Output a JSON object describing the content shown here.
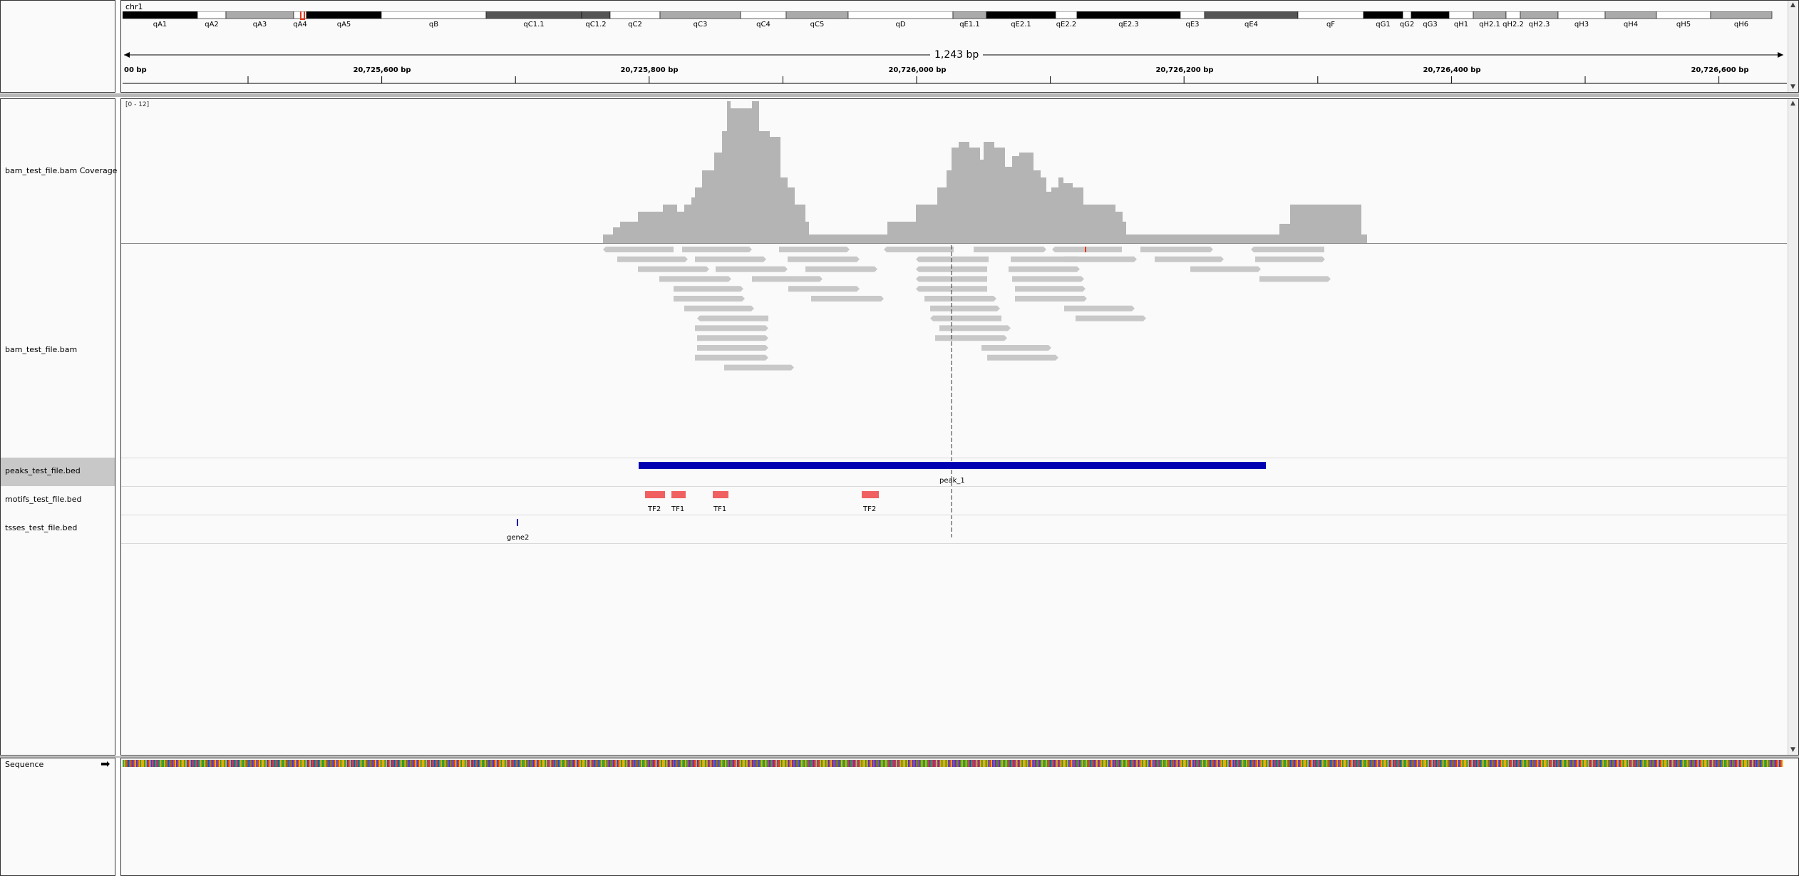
{
  "header": {
    "chromosome": "chr1",
    "span_label": "1,243 bp",
    "cytobands": [
      {
        "name": "qA1",
        "w": 105,
        "stain": "black"
      },
      {
        "name": "qA2",
        "w": 40,
        "stain": "white"
      },
      {
        "name": "qA3",
        "w": 95,
        "stain": "lgray"
      },
      {
        "name": "qA4",
        "w": 18,
        "stain": "white"
      },
      {
        "name": "qA5",
        "w": 105,
        "stain": "black"
      },
      {
        "name": "qB",
        "w": 147,
        "stain": "white"
      },
      {
        "name": "qC1.1",
        "w": 134,
        "stain": "dgray"
      },
      {
        "name": "qC1.2",
        "w": 40,
        "stain": "dgray"
      },
      {
        "name": "qC2",
        "w": 70,
        "stain": "white"
      },
      {
        "name": "qC3",
        "w": 113,
        "stain": "lgray"
      },
      {
        "name": "qC4",
        "w": 64,
        "stain": "white"
      },
      {
        "name": "qC5",
        "w": 87,
        "stain": "lgray"
      },
      {
        "name": "qD",
        "w": 147,
        "stain": "white"
      },
      {
        "name": "qE1.1",
        "w": 47,
        "stain": "lgray"
      },
      {
        "name": "qE2.1",
        "w": 97,
        "stain": "black"
      },
      {
        "name": "qE2.2",
        "w": 30,
        "stain": "white"
      },
      {
        "name": "qE2.3",
        "w": 145,
        "stain": "black"
      },
      {
        "name": "qE3",
        "w": 34,
        "stain": "white"
      },
      {
        "name": "qE4",
        "w": 131,
        "stain": "dgray"
      },
      {
        "name": "qF",
        "w": 92,
        "stain": "white"
      },
      {
        "name": "qG1",
        "w": 55,
        "stain": "black"
      },
      {
        "name": "qG2",
        "w": 12,
        "stain": "white"
      },
      {
        "name": "qG3",
        "w": 53,
        "stain": "black"
      },
      {
        "name": "qH1",
        "w": 34,
        "stain": "white"
      },
      {
        "name": "qH2.1",
        "w": 46,
        "stain": "lgray"
      },
      {
        "name": "qH2.2",
        "w": 20,
        "stain": "white"
      },
      {
        "name": "qH2.3",
        "w": 53,
        "stain": "lgray"
      },
      {
        "name": "qH3",
        "w": 66,
        "stain": "white"
      },
      {
        "name": "qH4",
        "w": 72,
        "stain": "lgray"
      },
      {
        "name": "qH5",
        "w": 76,
        "stain": "white"
      },
      {
        "name": "qH6",
        "w": 86,
        "stain": "lgray"
      }
    ],
    "ruler_labels": [
      "00 bp",
      "20,725,600 bp",
      "20,725,800 bp",
      "20,726,000 bp",
      "20,726,200 bp",
      "20,726,400 bp",
      "20,726,600 bp"
    ]
  },
  "tracks": {
    "coverage": {
      "name": "bam_test_file.bam Coverage",
      "range": "[0 - 12]"
    },
    "alignments": {
      "name": "bam_test_file.bam"
    },
    "peaks": {
      "name": "peaks_test_file.bed",
      "feature": "peak_1"
    },
    "motifs": {
      "name": "motifs_test_file.bed",
      "features": [
        "TF2",
        "TF1",
        "TF1",
        "TF2"
      ]
    },
    "tsses": {
      "name": "tsses_test_file.bed",
      "feature": "gene2"
    },
    "sequence": {
      "name": "Sequence",
      "strand_icon": "right-arrow-icon"
    }
  },
  "colors": {
    "coverage": "#b4b4b4",
    "read": "#c8c8c8",
    "peak": "#0000b2",
    "motif": "#f06060",
    "selected_row": "#c8c8c8",
    "highlight": "#e8341c"
  }
}
